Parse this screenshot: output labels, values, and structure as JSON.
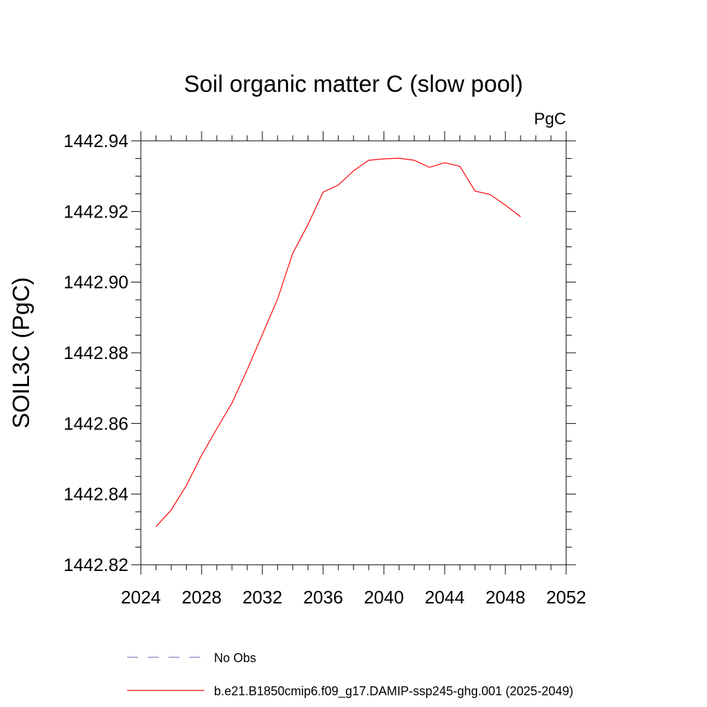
{
  "chart_data": {
    "type": "line",
    "title": "Soil organic matter C (slow pool)",
    "units_label": "PgC",
    "ylabel": "SOIL3C  (PgC)",
    "xlabel": "",
    "xlim": [
      2024,
      2052
    ],
    "ylim": [
      1442.82,
      1442.94
    ],
    "x_ticks": [
      "2024",
      "2028",
      "2032",
      "2036",
      "2040",
      "2044",
      "2048",
      "2052"
    ],
    "y_ticks": [
      "1442.82",
      "1442.84",
      "1442.86",
      "1442.88",
      "1442.90",
      "1442.92",
      "1442.94"
    ],
    "grid": false,
    "legend_position": "bottom",
    "series": [
      {
        "name": "No Obs",
        "color": "#8080c0",
        "dashed": true,
        "x": [],
        "y": []
      },
      {
        "name": "b.e21.B1850cmip6.f09_g17.DAMIP-ssp245-ghg.001 (2025-2049)",
        "color": "#ff0000",
        "dashed": false,
        "x": [
          2025,
          2026,
          2027,
          2028,
          2029,
          2030,
          2031,
          2032,
          2033,
          2034,
          2035,
          2036,
          2037,
          2038,
          2039,
          2040,
          2041,
          2042,
          2043,
          2044,
          2045,
          2046,
          2047,
          2048,
          2049
        ],
        "y": [
          1442.8308,
          1442.8355,
          1442.8425,
          1442.851,
          1442.8585,
          1442.8658,
          1442.8752,
          1442.8852,
          1442.8952,
          1442.9082,
          1442.9163,
          1442.9255,
          1442.9275,
          1442.9315,
          1442.9345,
          1442.9349,
          1442.9351,
          1442.9345,
          1442.9325,
          1442.9338,
          1442.9328,
          1442.9258,
          1442.9248,
          1442.9218,
          1442.9185
        ]
      }
    ]
  }
}
